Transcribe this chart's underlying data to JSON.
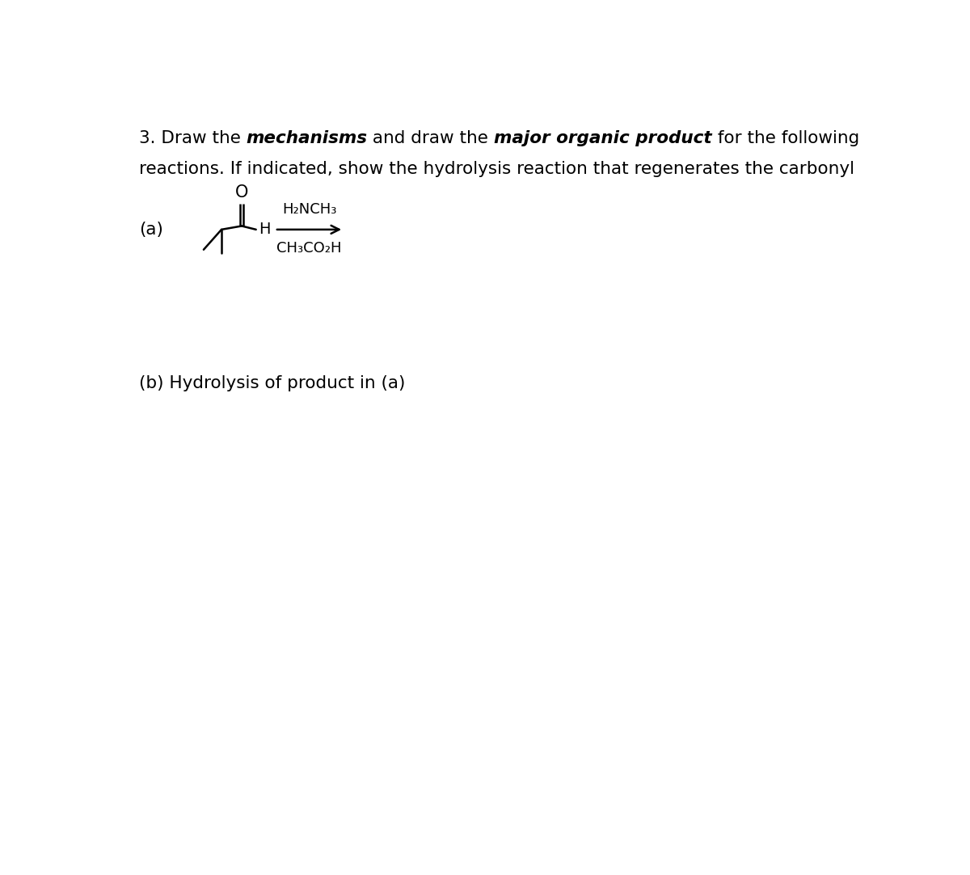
{
  "bg_color": "#ffffff",
  "label_a": "(a)",
  "reagent1": "H₂NCH₃",
  "reagent2": "CH₃CO₂H",
  "label_b": "(b) Hydrolysis of product in (a)",
  "font_size_title": 15.5,
  "font_size_labels": 15.5,
  "font_size_struct": 13,
  "fig_width": 12.0,
  "fig_height": 10.82,
  "dpi": 100
}
